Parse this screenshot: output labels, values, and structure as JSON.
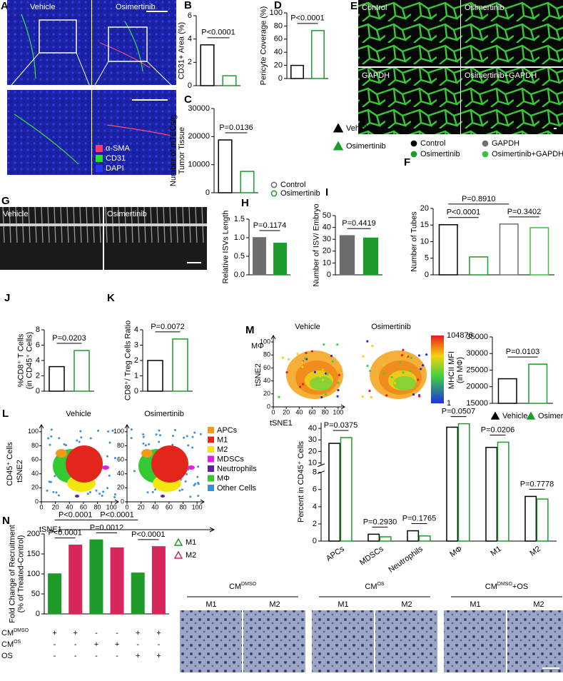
{
  "figure": {
    "panel_A": {
      "letter": "A",
      "columns": [
        "Vehicle",
        "Osimertinib"
      ],
      "legend": [
        "α-SMA",
        "CD31",
        "DAPI"
      ],
      "legend_colors": [
        "#ff3a6e",
        "#2bdc2b",
        "#2a35f0"
      ]
    },
    "panel_E": {
      "letter": "E",
      "labels": [
        "Control",
        "Osimertinib",
        "GAPDH",
        "Osimertinib+GAPDH"
      ]
    },
    "panel_G": {
      "letter": "G",
      "labels": [
        "Vehicle",
        "Osimertinib"
      ]
    },
    "panel_M_tsne": {
      "letter": "M",
      "titles": [
        "Vehicle",
        "Osimertinib"
      ],
      "cell_label": "MΦ",
      "xlabel": "tSNE1",
      "ylabel": "tSNE2",
      "lim": [
        0,
        110
      ],
      "ticks": [
        0,
        20,
        40,
        60,
        80,
        100
      ],
      "colorbar_range": [
        1,
        104876
      ]
    },
    "panel_L_tsne": {
      "letter": "L",
      "titles": [
        "Vehicle",
        "Osimertinib"
      ],
      "population": "CD45⁺ Cells",
      "xlabel": "tSNE1",
      "ylabel": "tSNE2",
      "lim": [
        0,
        110
      ],
      "ticks": [
        0,
        20,
        40,
        60,
        80,
        100
      ],
      "legend": [
        "APCs",
        "M1",
        "M2",
        "MDSCs",
        "Neutrophils",
        "MΦ",
        "Other Cells"
      ],
      "colors": [
        "#f39a1b",
        "#e3261c",
        "#f4e60c",
        "#e21ee3",
        "#5b1ea3",
        "#33c933",
        "#3b8fd9"
      ]
    },
    "panel_N_table": {
      "rows": [
        {
          "label": {
            "base": "CM",
            "sup": "DMSO"
          },
          "marks": [
            "+",
            "+",
            "-",
            "-",
            "+",
            "+"
          ]
        },
        {
          "label": {
            "base": "CM",
            "sup": "OS"
          },
          "marks": [
            "-",
            "-",
            "+",
            "+",
            "-",
            "-"
          ]
        },
        {
          "label": {
            "base": "OS"
          },
          "marks": [
            "-",
            "-",
            "-",
            "-",
            "+",
            "+"
          ]
        }
      ]
    },
    "panel_N_images": {
      "groups": [
        {
          "base": "CM",
          "sup": "DMSO"
        },
        {
          "base": "CM",
          "sup": "OS"
        },
        {
          "base": "CM",
          "sup": "DMSO",
          "tail": "+OS"
        }
      ],
      "sublabels": [
        "M1",
        "M2"
      ]
    }
  },
  "chart_data": [
    {
      "type": "bar",
      "panel": "B",
      "ylabel": [
        "CD31+ Area (%)"
      ],
      "ylim": [
        0,
        6
      ],
      "yticks": [
        0,
        2,
        4,
        6
      ],
      "values": [
        3.5,
        0.85
      ],
      "colors": [
        "#000000",
        "#1e9b2a"
      ],
      "style": "outline",
      "pvalues": [
        "P<0.0001"
      ]
    },
    {
      "type": "bar",
      "panel": "C",
      "ylabel": [
        "Number of mTECs/g",
        "Tumor Tissue"
      ],
      "ylim": [
        0,
        30000
      ],
      "yticks": [
        0,
        10000,
        20000,
        30000
      ],
      "values": [
        18800,
        7600
      ],
      "colors": [
        "#000000",
        "#1e9b2a"
      ],
      "style": "outline",
      "pvalues": [
        "P=0.0136"
      ],
      "legend": [
        "Vehicle",
        "Osimertinib"
      ]
    },
    {
      "type": "bar",
      "panel": "D",
      "ylabel": [
        "Pericyte Coverage (%)"
      ],
      "ylim": [
        0,
        100
      ],
      "yticks": [
        0,
        20,
        40,
        60,
        80,
        100
      ],
      "values": [
        20,
        73
      ],
      "colors": [
        "#000000",
        "#1e9b2a"
      ],
      "style": "outline",
      "pvalues": [
        "P<0.0001"
      ]
    },
    {
      "type": "bar",
      "panel": "F",
      "ylabel": [
        "Number of Tubes"
      ],
      "ylim": [
        0,
        20
      ],
      "yticks": [
        0,
        5,
        10,
        15,
        20
      ],
      "values": [
        15.1,
        5.4,
        15.3,
        14.2
      ],
      "colors": [
        "#000000",
        "#1e9b2a",
        "#707070",
        "#3cc23c"
      ],
      "style": "outline",
      "pvalues": [
        "P=0.8910",
        "P<0.0001",
        "P=0.3402"
      ],
      "legend": [
        "Control",
        "Osimertinib",
        "GAPDH",
        "Osimertinib+GAPDH"
      ]
    },
    {
      "type": "bar",
      "panel": "H",
      "ylabel": [
        "Relative ISVs Length"
      ],
      "ylim": [
        0,
        1.5
      ],
      "yticks": [
        {
          "value": 0,
          "label": "0.0"
        },
        0.5,
        {
          "value": 1,
          "label": "1.0"
        },
        1.5
      ],
      "values": [
        1.0,
        0.85
      ],
      "colors": [
        "#6d6d6d",
        "#1e9b2a"
      ],
      "style": "filled",
      "pvalues": [
        "P=0.1174"
      ],
      "legend": [
        "Control",
        "Osimertinib"
      ]
    },
    {
      "type": "bar",
      "panel": "I",
      "ylabel": [
        "Number of ISV/ Embryo"
      ],
      "ylim": [
        0,
        50
      ],
      "yticks": [
        0,
        10,
        20,
        30,
        40,
        50
      ],
      "values": [
        33,
        31
      ],
      "colors": [
        "#6d6d6d",
        "#1e9b2a"
      ],
      "style": "filled",
      "pvalues": [
        "P=0.4419"
      ]
    },
    {
      "type": "bar",
      "panel": "J",
      "ylabel": [
        "%CD8⁺ T Cells",
        "(in CD45⁺ Cells)"
      ],
      "ylim": [
        0,
        8
      ],
      "yticks": [
        0,
        2,
        4,
        6,
        8
      ],
      "values": [
        3.2,
        5.3
      ],
      "colors": [
        "#000000",
        "#1e9b2a"
      ],
      "style": "outline",
      "pvalues": [
        "P=0.0203"
      ]
    },
    {
      "type": "bar",
      "panel": "K",
      "ylabel": [
        "CD8⁺/ Treg Cells Ratio"
      ],
      "ylim": [
        0,
        4
      ],
      "yticks": [
        0,
        1,
        2,
        3,
        4
      ],
      "values": [
        2.0,
        3.4
      ],
      "colors": [
        "#000000",
        "#1e9b2a"
      ],
      "style": "outline",
      "pvalues": [
        "P=0.0072"
      ]
    },
    {
      "type": "bar",
      "ylabel": [
        "MHCII MFI",
        "(in MΦ)"
      ],
      "ylim": [
        15000,
        35000
      ],
      "yticks": [
        15000,
        20000,
        25000,
        30000,
        35000
      ],
      "values": [
        22400,
        26800
      ],
      "colors": [
        "#000000",
        "#1e9b2a"
      ],
      "style": "outline",
      "pvalues": [
        "P=0.0103"
      ],
      "legend": [
        "Vehicle",
        "Osimertinib"
      ]
    },
    {
      "type": "broken-bar",
      "ylabel": [
        "Percent in CD45⁺ Cells"
      ],
      "segments": [
        {
          "ylim": [
            0,
            8
          ],
          "yticks": [
            0,
            2,
            4,
            6,
            8
          ]
        },
        {
          "ylim": [
            8,
            45
          ],
          "yticks": [
            10,
            20,
            30,
            40
          ]
        }
      ],
      "categories": [
        "APCs",
        "MDSCs",
        "Neutrophils",
        "MΦ",
        "M1",
        "M2"
      ],
      "series": [
        {
          "color": "#000000",
          "values": [
            27,
            0.8,
            1.2,
            41,
            23.5,
            5.2
          ]
        },
        {
          "color": "#1e9b2a",
          "values": [
            32,
            0.5,
            0.6,
            44,
            28,
            4.9
          ]
        }
      ],
      "pvalues": [
        "P=0.0375",
        "P=0.2930",
        "P=0.1765",
        "P=0.0507",
        "P=0.0206",
        "P=0.7778"
      ]
    },
    {
      "type": "bar",
      "panel": "N",
      "ylabel": [
        "Fold Change of Recruitment",
        "(% of Treated-Control)"
      ],
      "ylim": [
        0,
        200
      ],
      "yticks": [
        0,
        50,
        100,
        150,
        200
      ],
      "values": [
        100,
        172,
        185,
        165,
        102,
        168
      ],
      "colors": [
        "#1e9b2a",
        "#d6265a",
        "#1e9b2a",
        "#d6265a",
        "#1e9b2a",
        "#d6265a"
      ],
      "style": "filled",
      "pvalues": [
        "P<0.0001",
        "P<0.0001",
        "P<0.0001",
        "P=0.0012",
        "P<0.0001"
      ],
      "legend": [
        "M1",
        "M2"
      ]
    }
  ]
}
